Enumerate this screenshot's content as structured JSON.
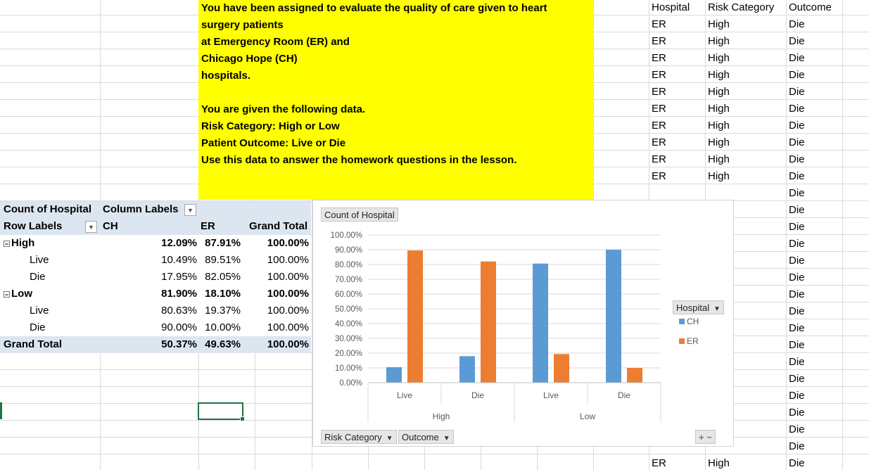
{
  "instructions": [
    "You have been assigned to evaluate the quality of care given to heart",
    "surgery patients",
    "at Emergency Room (ER) and",
    "Chicago Hope (CH)",
    "hospitals.",
    "",
    "You are given the following data.",
    "Risk Category: High or Low",
    "Patient Outcome: Live or Die",
    "Use this data to answer the homework questions in the lesson."
  ],
  "pivot": {
    "header_label": "Count of Hospital",
    "column_labels": "Column Labels",
    "row_labels": "Row Labels",
    "col_ch": "CH",
    "col_er": "ER",
    "col_total": "Grand Total",
    "rows": [
      {
        "label": "High",
        "ch": "12.09%",
        "er": "87.91%",
        "total": "100.00%",
        "level": 0
      },
      {
        "label": "Live",
        "ch": "10.49%",
        "er": "89.51%",
        "total": "100.00%",
        "level": 1
      },
      {
        "label": "Die",
        "ch": "17.95%",
        "er": "82.05%",
        "total": "100.00%",
        "level": 1
      },
      {
        "label": "Low",
        "ch": "81.90%",
        "er": "18.10%",
        "total": "100.00%",
        "level": 0
      },
      {
        "label": "Live",
        "ch": "80.63%",
        "er": "19.37%",
        "total": "100.00%",
        "level": 1
      },
      {
        "label": "Die",
        "ch": "90.00%",
        "er": "10.00%",
        "total": "100.00%",
        "level": 1
      }
    ],
    "grand_total": {
      "label": "Grand Total",
      "ch": "50.37%",
      "er": "49.63%",
      "total": "100.00%"
    }
  },
  "data_table": {
    "headers": [
      "Hospital",
      "Risk Category",
      "Outcome"
    ],
    "rows": [
      [
        "ER",
        "High",
        "Die"
      ],
      [
        "ER",
        "High",
        "Die"
      ],
      [
        "ER",
        "High",
        "Die"
      ],
      [
        "ER",
        "High",
        "Die"
      ],
      [
        "ER",
        "High",
        "Die"
      ],
      [
        "ER",
        "High",
        "Die"
      ],
      [
        "ER",
        "High",
        "Die"
      ],
      [
        "ER",
        "High",
        "Die"
      ],
      [
        "ER",
        "High",
        "Die"
      ],
      [
        "ER",
        "High",
        "Die"
      ],
      [
        "",
        "",
        "Die"
      ],
      [
        "",
        "",
        "Die"
      ],
      [
        "",
        "",
        "Die"
      ],
      [
        "",
        "",
        "Die"
      ],
      [
        "",
        "",
        "Die"
      ],
      [
        "",
        "",
        "Die"
      ],
      [
        "",
        "",
        "Die"
      ],
      [
        "",
        "",
        "Die"
      ],
      [
        "",
        "",
        "Die"
      ],
      [
        "",
        "",
        "Die"
      ],
      [
        "",
        "",
        "Die"
      ],
      [
        "",
        "",
        "Die"
      ],
      [
        "",
        "",
        "Die"
      ],
      [
        "",
        "",
        "Die"
      ],
      [
        "",
        "",
        "Die"
      ],
      [
        "",
        "",
        "Die"
      ],
      [
        "ER",
        "High",
        "Die"
      ]
    ]
  },
  "chart": {
    "field_button": "Count of Hospital",
    "legend_title": "Hospital",
    "axis_button_1": "Risk Category",
    "axis_button_2": "Outcome",
    "plus_minus": "+ −"
  },
  "chart_data": {
    "type": "bar",
    "categories": [
      "Live",
      "Die",
      "Live",
      "Die"
    ],
    "groups": [
      "High",
      "Low"
    ],
    "series": [
      {
        "name": "CH",
        "color": "#5b9bd5",
        "values": [
          10.49,
          17.95,
          80.63,
          90.0
        ]
      },
      {
        "name": "ER",
        "color": "#ed7d31",
        "values": [
          89.51,
          82.05,
          19.37,
          10.0
        ]
      }
    ],
    "yticks": [
      "0.00%",
      "10.00%",
      "20.00%",
      "30.00%",
      "40.00%",
      "50.00%",
      "60.00%",
      "70.00%",
      "80.00%",
      "90.00%",
      "100.00%"
    ],
    "ylim": [
      0,
      100
    ],
    "legend_position": "right",
    "grid": true
  }
}
